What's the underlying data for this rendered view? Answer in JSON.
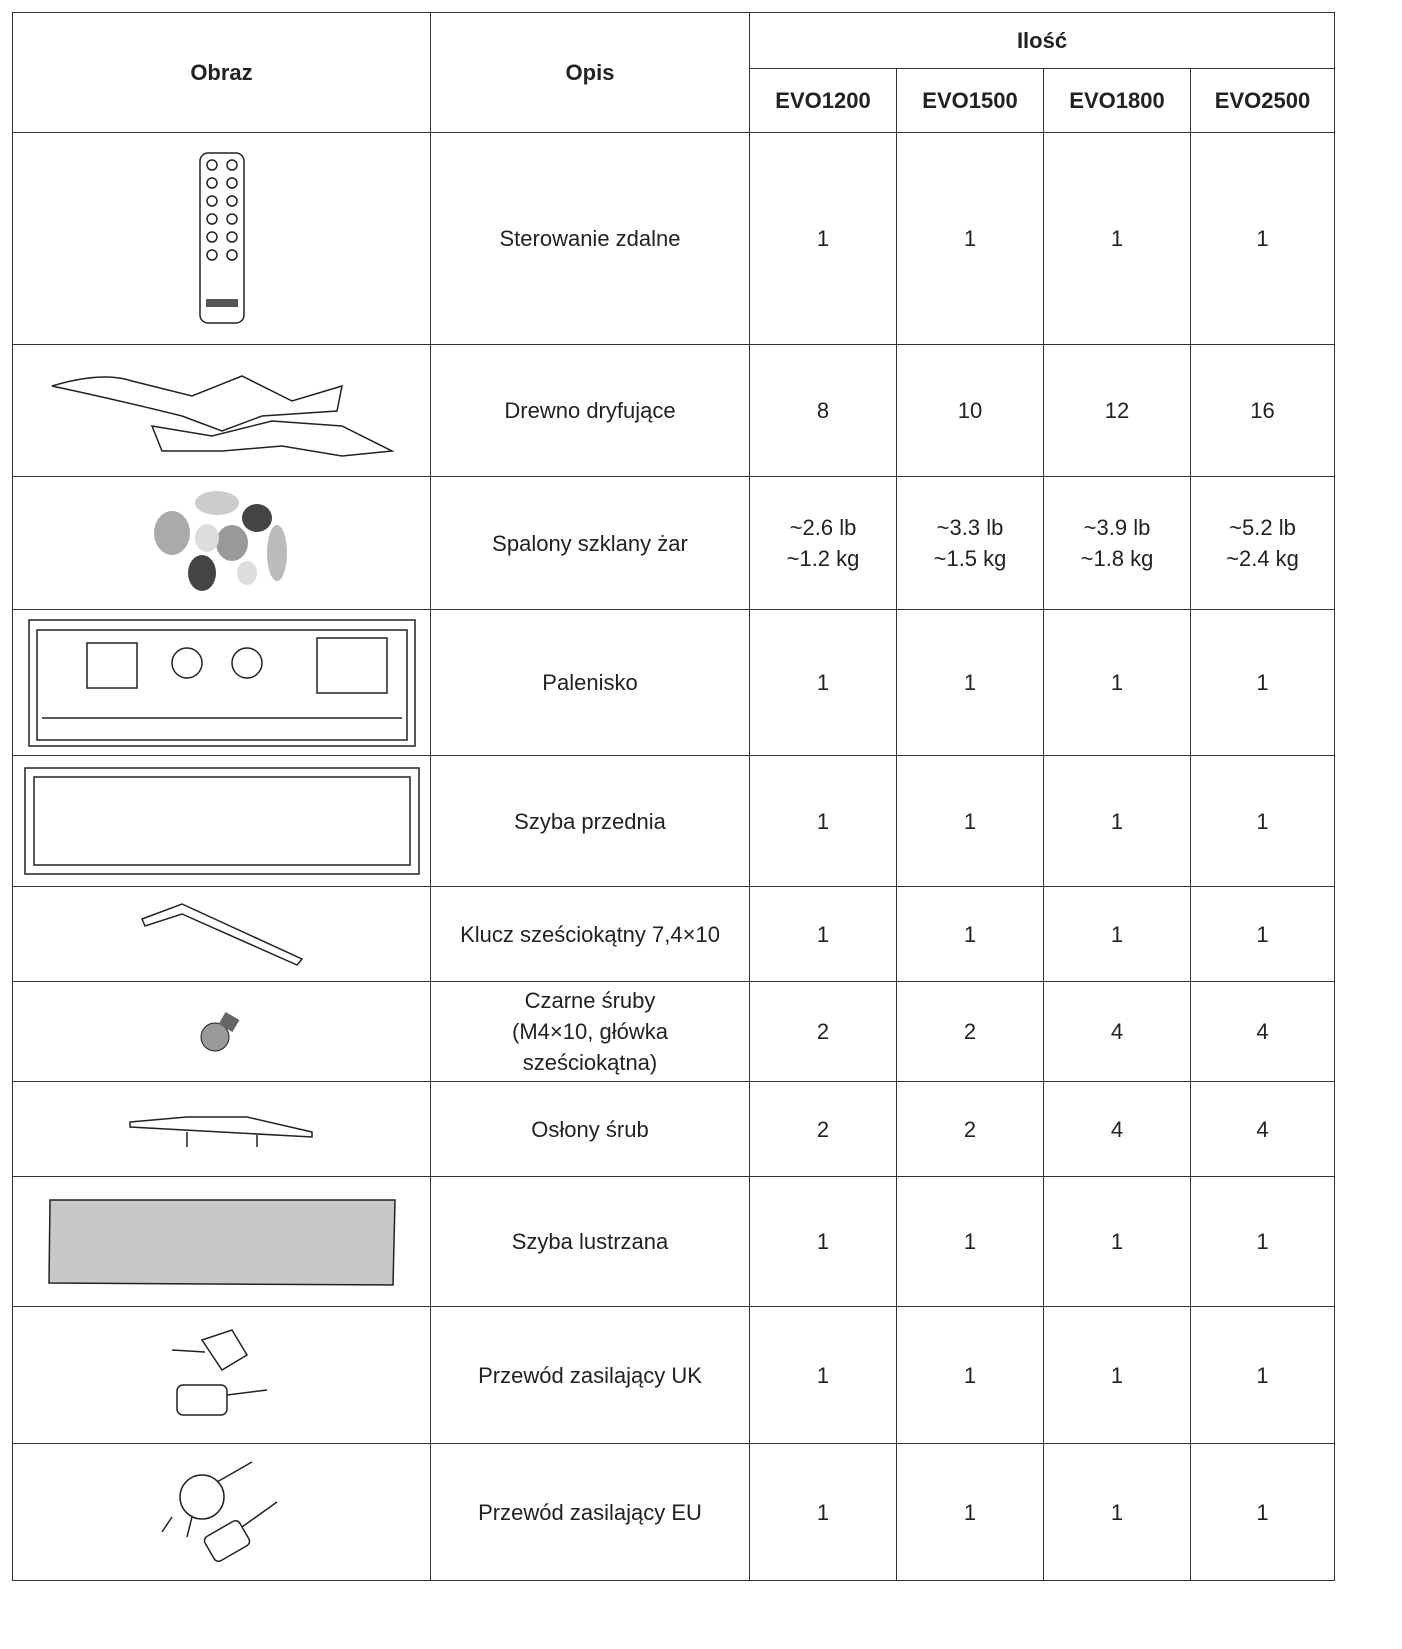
{
  "table": {
    "headers": {
      "image": "Obraz",
      "description": "Opis",
      "quantity": "Ilość",
      "models": [
        "EVO1200",
        "EVO1500",
        "EVO1800",
        "EVO2500"
      ]
    },
    "rows": [
      {
        "description": "Sterowanie zdalne",
        "quantities": [
          1,
          1,
          1,
          1
        ]
      },
      {
        "description": "Drewno dryfujące",
        "quantities": [
          8,
          10,
          12,
          16
        ]
      },
      {
        "description": "Spalony szklany żar",
        "quantities": [
          [
            "~2.6  lb",
            "~1.2 kg"
          ],
          [
            "~3.3 lb",
            "~1.5 kg"
          ],
          [
            "~3.9 lb",
            "~1.8 kg"
          ],
          [
            "~5.2 lb",
            "~2.4 kg"
          ]
        ]
      },
      {
        "description": "Palenisko",
        "quantities": [
          1,
          1,
          1,
          1
        ]
      },
      {
        "description": "Szyba przednia",
        "quantities": [
          1,
          1,
          1,
          1
        ]
      },
      {
        "description": "Klucz sześciokątny 7,4×10",
        "quantities": [
          1,
          1,
          1,
          1
        ]
      },
      {
        "description": [
          "Czarne śruby",
          "(M4×10, główka",
          "sześciokątna)"
        ],
        "quantities": [
          2,
          2,
          4,
          4
        ]
      },
      {
        "description": "Osłony śrub",
        "quantities": [
          2,
          2,
          4,
          4
        ]
      },
      {
        "description": "Szyba lustrzana",
        "quantities": [
          1,
          1,
          1,
          1
        ]
      },
      {
        "description": "Przewód zasilający UK",
        "quantities": [
          1,
          1,
          1,
          1
        ]
      },
      {
        "description": "Przewód zasilający EU",
        "quantities": [
          1,
          1,
          1,
          1
        ]
      }
    ]
  }
}
